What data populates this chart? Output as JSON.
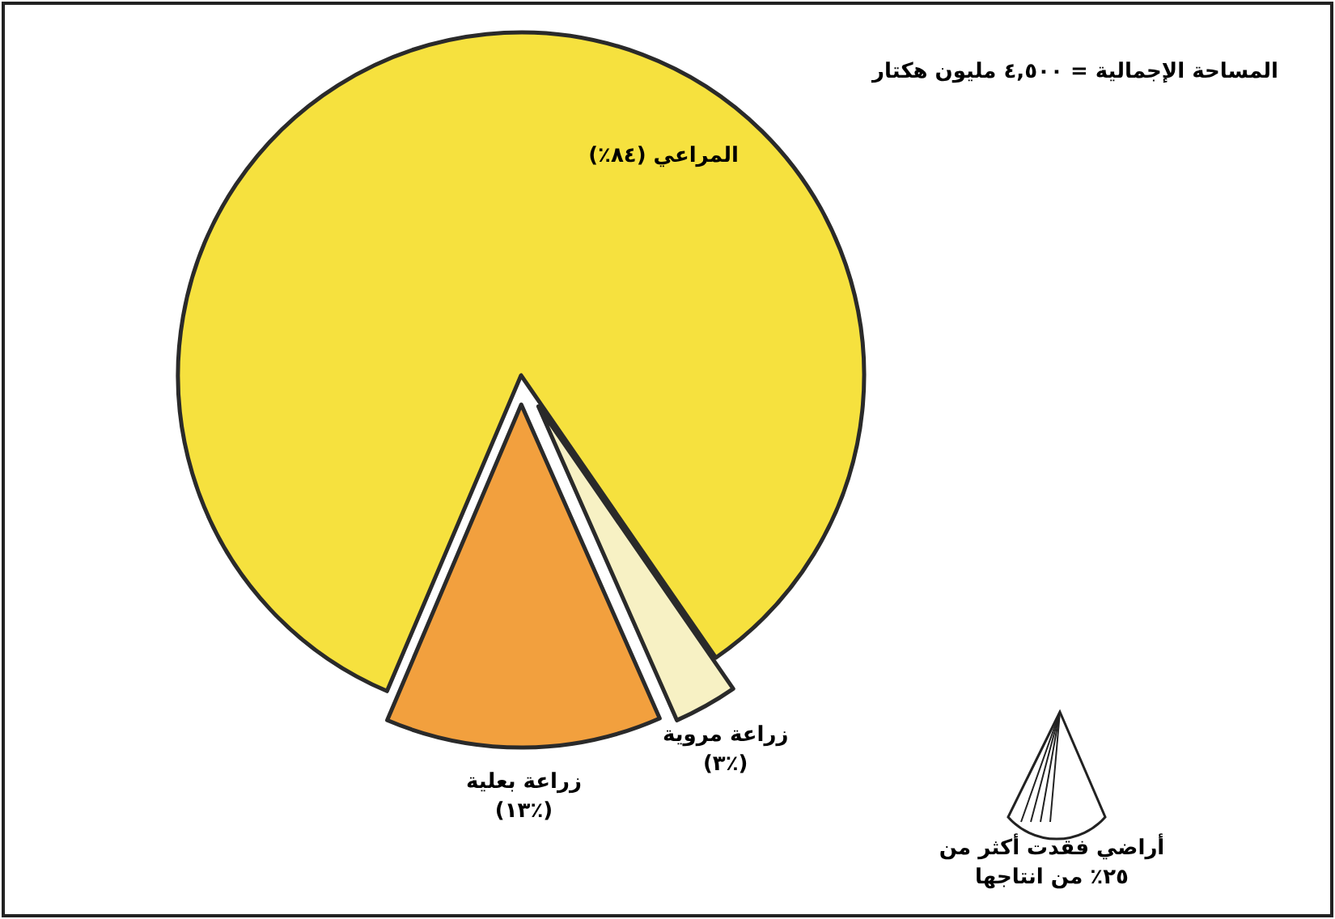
{
  "chart_data": {
    "type": "pie",
    "title": "المساحة الإجمالية = ٤,٥٠٠ مليون هكتار",
    "categories": [
      "المراعي (٨٤٪)",
      "زراعة مروية (٣٪)",
      "زراعة بعلية (١٣٪)"
    ],
    "values": [
      84,
      3,
      13
    ],
    "colors": [
      "#f6e13e",
      "#f7f1c4",
      "#f2a03e"
    ],
    "annotations": [
      "أراضي فقدت أكثر من ٢٥٪ من انتاجها"
    ]
  }
}
